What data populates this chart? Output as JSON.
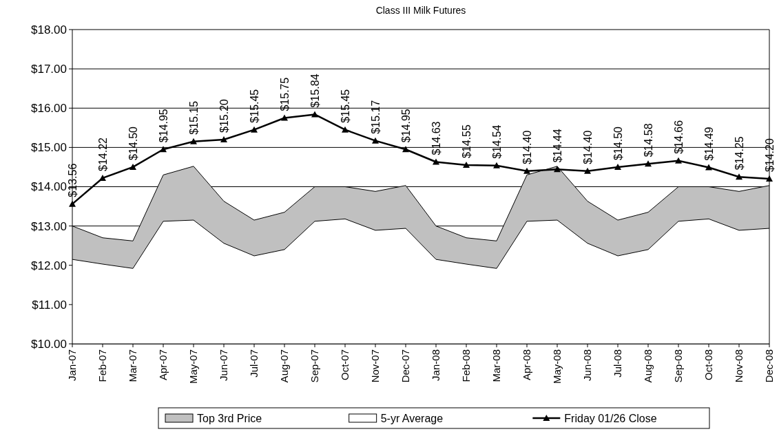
{
  "chart_data": {
    "type": "area",
    "title": "Class III Milk Futures",
    "categories": [
      "Jan-07",
      "Feb-07",
      "Mar-07",
      "Apr-07",
      "May-07",
      "Jun-07",
      "Jul-07",
      "Aug-07",
      "Sep-07",
      "Oct-07",
      "Nov-07",
      "Dec-07",
      "Jan-08",
      "Feb-08",
      "Mar-08",
      "Apr-08",
      "May-08",
      "Jun-08",
      "Jul-08",
      "Aug-08",
      "Sep-08",
      "Oct-08",
      "Nov-08",
      "Dec-08"
    ],
    "series": [
      {
        "name": "Top 3rd Price",
        "color": "#c0c0c0",
        "values": [
          13.0,
          12.7,
          12.62,
          14.3,
          14.52,
          13.63,
          13.15,
          13.35,
          14.0,
          14.0,
          13.88,
          14.03,
          13.0,
          12.7,
          12.62,
          14.3,
          14.52,
          13.63,
          13.15,
          13.35,
          14.0,
          14.0,
          13.88,
          14.03
        ]
      },
      {
        "name": "5-yr Average",
        "color": "#ffffff",
        "values": [
          12.15,
          12.03,
          11.92,
          13.12,
          13.15,
          12.56,
          12.24,
          12.4,
          13.12,
          13.18,
          12.89,
          12.94,
          12.15,
          12.03,
          11.92,
          13.12,
          13.15,
          12.56,
          12.24,
          12.4,
          13.12,
          13.18,
          12.89,
          12.94
        ]
      },
      {
        "name": "Friday 01/26 Close",
        "type": "line",
        "marker": "triangle",
        "color": "#000000",
        "values": [
          13.56,
          14.22,
          14.5,
          14.95,
          15.15,
          15.2,
          15.45,
          15.75,
          15.84,
          15.45,
          15.17,
          14.95,
          14.63,
          14.55,
          14.54,
          14.4,
          14.44,
          14.4,
          14.5,
          14.58,
          14.66,
          14.49,
          14.25,
          14.2
        ],
        "value_labels": [
          "$13.56",
          "$14.22",
          "$14.50",
          "$14.95",
          "$15.15",
          "$15.20",
          "$15.45",
          "$15.75",
          "$15.84",
          "$15.45",
          "$15.17",
          "$14.95",
          "$14.63",
          "$14.55",
          "$14.54",
          "$14.40",
          "$14.44",
          "$14.40",
          "$14.50",
          "$14.58",
          "$14.66",
          "$14.49",
          "$14.25",
          "$14.20"
        ]
      }
    ],
    "ylim": [
      10,
      18
    ],
    "yticks": [
      {
        "value": 10,
        "label": "$10.00"
      },
      {
        "value": 11,
        "label": "$11.00"
      },
      {
        "value": 12,
        "label": "$12.00"
      },
      {
        "value": 13,
        "label": "$13.00"
      },
      {
        "value": 14,
        "label": "$14.00"
      },
      {
        "value": 15,
        "label": "$15.00"
      },
      {
        "value": 16,
        "label": "$16.00"
      },
      {
        "value": 17,
        "label": "$17.00"
      },
      {
        "value": 18,
        "label": "$18.00"
      }
    ],
    "grid": "y",
    "legend": "bottom"
  }
}
